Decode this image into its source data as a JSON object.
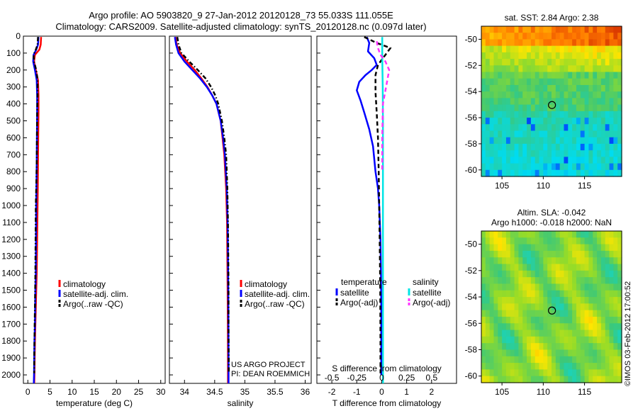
{
  "header": {
    "line1": "Argo profile: AO 5903820_9 27-Jan-2012 20120128_73 55.033S 111.055E",
    "line2": "Climatology: CARS2009. Satellite-adjusted climatology: synTS_20120128.nc (0.097d later)"
  },
  "colors": {
    "climatology": "#ff0000",
    "satellite": "#0000ff",
    "argo": "#000000",
    "salinity_satellite": "#00e5e5",
    "salinity_argo": "#ff33ff"
  },
  "credits": {
    "project": "US ARGO PROJECT",
    "pi": "PI: DEAN ROEMMICH",
    "imos": "©IMOS 03-Feb-2012 17:00:52"
  },
  "chart_data": [
    {
      "type": "line",
      "xlabel": "temperature (deg C)",
      "ylabel": "",
      "xlim": [
        -1,
        31
      ],
      "ylim": [
        2050,
        0
      ],
      "xticks": [
        0,
        5,
        10,
        15,
        20,
        25,
        30
      ],
      "yticks": [
        0,
        100,
        200,
        300,
        400,
        500,
        600,
        700,
        800,
        900,
        1000,
        1100,
        1200,
        1300,
        1400,
        1500,
        1600,
        1700,
        1800,
        1900,
        2000
      ],
      "legend": [
        "climatology",
        "satellite-adj. clim.",
        "Argo(..raw -QC)"
      ],
      "legend_position": "lower-center",
      "series": [
        {
          "name": "climatology",
          "color": "#ff0000",
          "style": "solid",
          "x": [
            3.0,
            2.9,
            2.6,
            1.6,
            1.4,
            1.8,
            2.3,
            2.4,
            2.4,
            2.35,
            2.3,
            2.25,
            2.2,
            2.1,
            2.0,
            1.9,
            1.8,
            1.7,
            1.6,
            1.55,
            1.5,
            1.45
          ],
          "y": [
            5,
            50,
            80,
            110,
            150,
            200,
            260,
            350,
            450,
            600,
            750,
            900,
            1000,
            1200,
            1400,
            1500,
            1600,
            1700,
            1800,
            1900,
            2000,
            2050
          ]
        },
        {
          "name": "satellite-adj. clim.",
          "color": "#0000ff",
          "style": "solid",
          "x": [
            2.4,
            2.3,
            1.9,
            1.3,
            1.2,
            1.6,
            2.0,
            2.1,
            2.1,
            2.05,
            2.0,
            1.95,
            1.9,
            1.85,
            1.8,
            1.7,
            1.65,
            1.6,
            1.5,
            1.45,
            1.4,
            1.35
          ],
          "y": [
            5,
            50,
            80,
            110,
            150,
            200,
            260,
            350,
            450,
            600,
            750,
            900,
            1000,
            1200,
            1400,
            1500,
            1600,
            1700,
            1800,
            1900,
            2000,
            2050
          ]
        },
        {
          "name": "Argo(..raw -QC)",
          "color": "#000000",
          "style": "dashdot",
          "x": [
            2.3,
            2.2,
            1.8,
            1.3,
            1.4,
            1.9,
            2.2,
            2.2,
            2.1,
            2.05,
            2.0,
            1.9,
            1.8,
            1.75,
            1.7,
            1.65,
            1.6,
            1.55,
            1.5,
            1.45,
            1.45
          ],
          "y": [
            5,
            50,
            80,
            110,
            150,
            200,
            260,
            350,
            450,
            600,
            750,
            900,
            1000,
            1200,
            1400,
            1500,
            1600,
            1700,
            1800,
            1900,
            1990
          ]
        }
      ]
    },
    {
      "type": "line",
      "xlabel": "salinity",
      "ylabel": "",
      "xlim": [
        33.75,
        36.1
      ],
      "ylim": [
        2050,
        0
      ],
      "xticks": [
        34,
        34.5,
        35,
        35.5,
        36
      ],
      "legend": [
        "climatology",
        "satellite-adj. clim.",
        "Argo(..raw -QC)"
      ],
      "legend_position": "lower-center",
      "series": [
        {
          "name": "climatology",
          "color": "#ff0000",
          "style": "solid",
          "x": [
            33.85,
            33.87,
            33.93,
            34.04,
            34.17,
            34.28,
            34.38,
            34.46,
            34.53,
            34.6,
            34.63,
            34.66,
            34.69,
            34.705,
            34.71,
            34.715,
            34.718,
            34.72,
            34.72
          ],
          "y": [
            5,
            50,
            100,
            150,
            200,
            250,
            300,
            350,
            400,
            500,
            600,
            700,
            900,
            1100,
            1300,
            1500,
            1700,
            1900,
            2050
          ]
        },
        {
          "name": "satellite-adj. clim.",
          "color": "#0000ff",
          "style": "solid",
          "x": [
            33.84,
            33.86,
            33.9,
            34.0,
            34.13,
            34.26,
            34.37,
            34.46,
            34.53,
            34.6,
            34.64,
            34.67,
            34.7,
            34.715,
            34.72,
            34.725,
            34.728,
            34.73,
            34.73
          ],
          "y": [
            5,
            50,
            100,
            150,
            200,
            250,
            300,
            350,
            400,
            500,
            600,
            700,
            900,
            1100,
            1300,
            1500,
            1700,
            1900,
            2050
          ]
        },
        {
          "name": "Argo(..raw -QC)",
          "color": "#000000",
          "style": "dashdot",
          "x": [
            33.88,
            33.9,
            33.95,
            34.08,
            34.22,
            34.35,
            34.44,
            34.51,
            34.56,
            34.62,
            34.66,
            34.69,
            34.71,
            34.72,
            34.725,
            34.73,
            34.73,
            34.735
          ],
          "y": [
            5,
            50,
            100,
            150,
            200,
            250,
            300,
            350,
            400,
            500,
            600,
            700,
            900,
            1100,
            1300,
            1500,
            1700,
            1990
          ]
        }
      ]
    },
    {
      "type": "line",
      "xlabel": "T difference from climatology",
      "ylabel": "",
      "top_axis_label": "S difference from climatology",
      "xlim": [
        -2.6,
        3
      ],
      "ylim": [
        2050,
        0
      ],
      "xticks": [
        -2,
        -1,
        0,
        1,
        2
      ],
      "top_ticks": [
        -0.5,
        -0.25,
        0,
        0.25,
        0.5
      ],
      "top_ticks_on_x_scale": [
        -2,
        -1,
        0,
        1,
        2
      ],
      "legend_temperature_title": "temperature",
      "legend_salinity_title": "salinity",
      "legend_temperature": [
        "satellite",
        "Argo(-adj)"
      ],
      "legend_salinity": [
        "satellite",
        "Argo(-adj)"
      ],
      "legend_position": "lower-center",
      "series": [
        {
          "name": "satellite",
          "group": "temperature",
          "color": "#0000ff",
          "style": "solid",
          "x": [
            -0.6,
            -0.5,
            -0.55,
            -0.3,
            -0.2,
            -0.4,
            -0.65,
            -0.9,
            -1.0,
            -0.85,
            -0.7,
            -0.5,
            -0.35,
            -0.25,
            -0.15,
            -0.1,
            -0.05,
            -0.03,
            -0.02,
            -0.02
          ],
          "y": [
            5,
            40,
            90,
            130,
            170,
            200,
            230,
            270,
            320,
            380,
            450,
            550,
            650,
            800,
            900,
            1000,
            1200,
            1400,
            1600,
            2000
          ]
        },
        {
          "name": "Argo(-adj)",
          "group": "temperature",
          "color": "#000000",
          "style": "dashed",
          "x": [
            -0.7,
            -0.2,
            0.35,
            0.2,
            0.05,
            -0.15,
            -0.25,
            -0.25,
            -0.2,
            -0.15,
            -0.12,
            -0.1,
            -0.08,
            -0.06,
            -0.05,
            -0.05
          ],
          "y": [
            5,
            40,
            70,
            100,
            130,
            170,
            230,
            330,
            450,
            600,
            800,
            1000,
            1200,
            1500,
            1800,
            1990
          ]
        },
        {
          "name": "satellite",
          "group": "salinity",
          "color": "#00e5e5",
          "style": "solid",
          "x": [
            0.02,
            0.02,
            0.03,
            0.04,
            0.05,
            0.05,
            0.05,
            0.05,
            0.05,
            0.05
          ],
          "y": [
            5,
            100,
            200,
            300,
            500,
            800,
            1100,
            1500,
            1800,
            2050
          ]
        },
        {
          "name": "Argo(-adj)",
          "group": "salinity",
          "color": "#ff33ff",
          "style": "dashed",
          "x": [
            -0.2,
            -0.15,
            -0.05,
            0.15,
            0.3,
            0.2,
            0.05,
            0.02,
            0.02
          ],
          "y": [
            30,
            70,
            110,
            150,
            200,
            280,
            400,
            600,
            800
          ]
        }
      ]
    },
    {
      "type": "heatmap",
      "title": "sat. SST: 2.84 Argo: 2.38",
      "xlim": [
        102.5,
        119.5
      ],
      "ylim": [
        -60.5,
        -49
      ],
      "xticks": [
        105,
        110,
        115
      ],
      "yticks": [
        -50,
        -52,
        -54,
        -56,
        -58,
        -60
      ],
      "marker": {
        "lon": 111.055,
        "lat": -55.033
      }
    },
    {
      "type": "heatmap",
      "title": "Altim. SLA: -0.042",
      "subtitle": "Argo h1000: -0.018 h2000: NaN",
      "xlim": [
        102.5,
        119.5
      ],
      "ylim": [
        -60.5,
        -49
      ],
      "xticks": [
        105,
        110,
        115
      ],
      "yticks": [
        -50,
        -52,
        -54,
        -56,
        -58,
        -60
      ],
      "marker": {
        "lon": 111.055,
        "lat": -55.033
      }
    }
  ]
}
